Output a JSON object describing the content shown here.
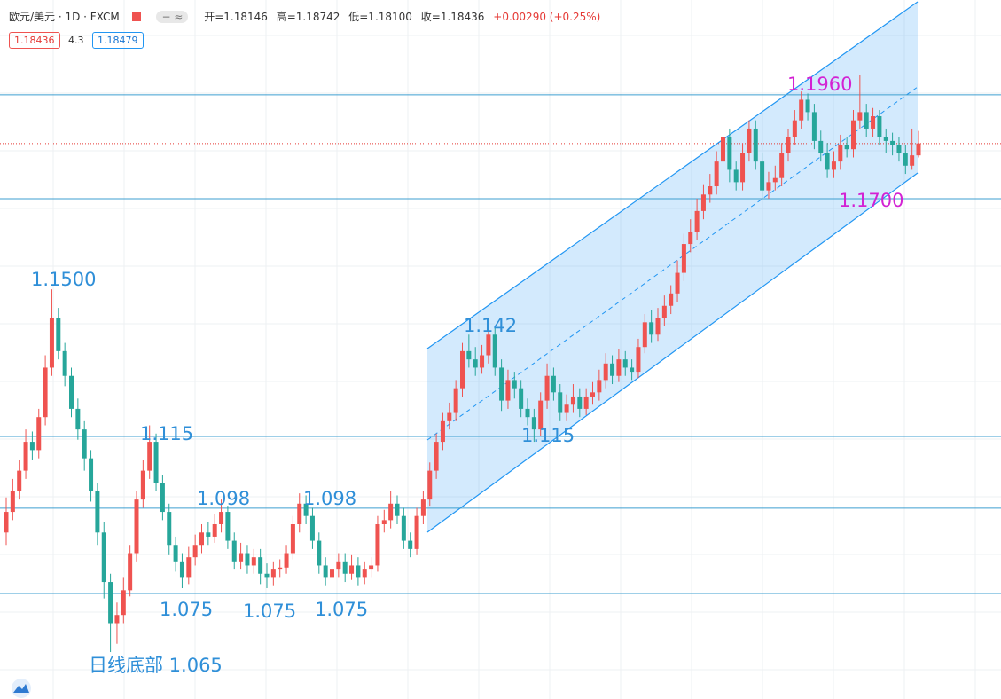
{
  "header": {
    "symbol": "欧元/美元 · 1D · FXCM",
    "ohlc": [
      "开=1.18146",
      "高=1.18742",
      "低=1.18100",
      "收=1.18436"
    ],
    "change": "+0.00290 (+0.25%)",
    "bid": "1.18436",
    "spread": "4.3",
    "ask": "1.18479"
  },
  "chart_data": {
    "type": "candlestick",
    "up_color": "#ef5350",
    "down_color": "#26a69a",
    "ylim": [
      1.0496,
      1.2192
    ],
    "open": [
      1.09,
      1.095,
      1.1,
      1.105,
      1.112,
      1.11,
      1.118,
      1.13,
      1.142,
      1.134,
      1.128,
      1.12,
      1.115,
      1.108,
      1.1,
      1.09,
      1.078,
      1.068,
      1.07,
      1.076,
      1.085,
      1.098,
      1.105,
      1.112,
      1.102,
      1.095,
      1.087,
      1.083,
      1.079,
      1.084,
      1.087,
      1.09,
      1.089,
      1.092,
      1.095,
      1.088,
      1.083,
      1.085,
      1.082,
      1.084,
      1.08,
      1.079,
      1.081,
      1.0815,
      1.085,
      1.092,
      1.097,
      1.094,
      1.088,
      1.082,
      1.079,
      1.081,
      1.083,
      1.08,
      1.082,
      1.079,
      1.081,
      1.082,
      1.092,
      1.093,
      1.097,
      1.094,
      1.088,
      1.086,
      1.094,
      1.098,
      1.105,
      1.112,
      1.117,
      1.119,
      1.125,
      1.134,
      1.132,
      1.13,
      1.133,
      1.138,
      1.13,
      1.122,
      1.127,
      1.125,
      1.12,
      1.118,
      1.115,
      1.122,
      1.128,
      1.124,
      1.119,
      1.121,
      1.123,
      1.12,
      1.123,
      1.124,
      1.127,
      1.131,
      1.128,
      1.132,
      1.13,
      1.129,
      1.135,
      1.141,
      1.138,
      1.142,
      1.145,
      1.148,
      1.153,
      1.16,
      1.163,
      1.168,
      1.172,
      1.174,
      1.18,
      1.186,
      1.178,
      1.175,
      1.182,
      1.188,
      1.18,
      1.173,
      1.175,
      1.176,
      1.182,
      1.186,
      1.19,
      1.195,
      1.192,
      1.185,
      1.182,
      1.178,
      1.18,
      1.184,
      1.183,
      1.19,
      1.192,
      1.188,
      1.191,
      1.186,
      1.185,
      1.184,
      1.182,
      1.179,
      1.1815
    ],
    "high": [
      1.0985,
      1.103,
      1.1075,
      1.115,
      1.1145,
      1.12,
      1.133,
      1.149,
      1.1445,
      1.136,
      1.13,
      1.1225,
      1.117,
      1.11,
      1.102,
      1.0925,
      1.08,
      1.073,
      1.079,
      1.087,
      1.1,
      1.1075,
      1.116,
      1.114,
      1.104,
      1.097,
      1.089,
      1.085,
      1.0865,
      1.0895,
      1.092,
      1.0925,
      1.0945,
      1.098,
      1.0965,
      1.09,
      1.0875,
      1.087,
      1.086,
      1.086,
      1.0825,
      1.083,
      1.0835,
      1.087,
      1.094,
      1.0995,
      1.099,
      1.096,
      1.09,
      1.084,
      1.083,
      1.085,
      1.085,
      1.0845,
      1.084,
      1.083,
      1.084,
      1.094,
      1.0955,
      1.1,
      1.099,
      1.096,
      1.09,
      1.096,
      1.1,
      1.107,
      1.114,
      1.119,
      1.1215,
      1.127,
      1.136,
      1.138,
      1.135,
      1.1355,
      1.141,
      1.14,
      1.132,
      1.1295,
      1.129,
      1.127,
      1.1225,
      1.12,
      1.124,
      1.131,
      1.13,
      1.126,
      1.1235,
      1.126,
      1.125,
      1.125,
      1.1265,
      1.1295,
      1.1335,
      1.133,
      1.1345,
      1.134,
      1.132,
      1.137,
      1.143,
      1.144,
      1.1445,
      1.1475,
      1.15,
      1.156,
      1.1625,
      1.166,
      1.171,
      1.1745,
      1.177,
      1.1825,
      1.189,
      1.188,
      1.18,
      1.1845,
      1.19,
      1.19,
      1.182,
      1.1775,
      1.179,
      1.1845,
      1.188,
      1.1925,
      1.197,
      1.1965,
      1.194,
      1.1875,
      1.1845,
      1.1825,
      1.1865,
      1.186,
      1.1925,
      1.201,
      1.194,
      1.193,
      1.1925,
      1.188,
      1.187,
      1.186,
      1.184,
      1.188,
      1.18742
    ],
    "low": [
      1.087,
      1.093,
      1.098,
      1.103,
      1.1075,
      1.108,
      1.116,
      1.128,
      1.132,
      1.1255,
      1.118,
      1.1125,
      1.105,
      1.0975,
      1.087,
      1.074,
      1.061,
      1.063,
      1.068,
      1.0745,
      1.083,
      1.096,
      1.103,
      1.1,
      1.093,
      1.0845,
      1.0805,
      1.0765,
      1.0775,
      1.082,
      1.085,
      1.087,
      1.0875,
      1.09,
      1.086,
      1.081,
      1.081,
      1.08,
      1.08,
      1.0775,
      1.0765,
      1.077,
      1.079,
      1.08,
      1.0835,
      1.09,
      1.092,
      1.086,
      1.08,
      1.077,
      1.077,
      1.079,
      1.078,
      1.0785,
      1.077,
      1.0775,
      1.079,
      1.0805,
      1.09,
      1.091,
      1.092,
      1.086,
      1.084,
      1.0845,
      1.092,
      1.0965,
      1.103,
      1.11,
      1.115,
      1.117,
      1.123,
      1.13,
      1.128,
      1.1285,
      1.131,
      1.128,
      1.1195,
      1.12,
      1.1225,
      1.118,
      1.116,
      1.112,
      1.1135,
      1.12,
      1.122,
      1.117,
      1.117,
      1.119,
      1.118,
      1.1185,
      1.121,
      1.122,
      1.125,
      1.126,
      1.1265,
      1.128,
      1.127,
      1.1275,
      1.1335,
      1.136,
      1.1365,
      1.14,
      1.143,
      1.146,
      1.151,
      1.158,
      1.161,
      1.166,
      1.17,
      1.172,
      1.178,
      1.175,
      1.173,
      1.173,
      1.18,
      1.178,
      1.171,
      1.171,
      1.173,
      1.174,
      1.18,
      1.184,
      1.188,
      1.19,
      1.183,
      1.18,
      1.176,
      1.176,
      1.178,
      1.181,
      1.181,
      1.188,
      1.186,
      1.186,
      1.184,
      1.182,
      1.1815,
      1.18,
      1.177,
      1.178,
      1.181
    ],
    "close": [
      1.095,
      1.1,
      1.105,
      1.112,
      1.11,
      1.118,
      1.13,
      1.142,
      1.134,
      1.128,
      1.12,
      1.115,
      1.108,
      1.1,
      1.09,
      1.078,
      1.068,
      1.07,
      1.076,
      1.085,
      1.098,
      1.105,
      1.112,
      1.102,
      1.095,
      1.087,
      1.083,
      1.079,
      1.084,
      1.087,
      1.09,
      1.089,
      1.092,
      1.095,
      1.088,
      1.083,
      1.085,
      1.082,
      1.084,
      1.08,
      1.079,
      1.081,
      1.0815,
      1.085,
      1.092,
      1.097,
      1.094,
      1.088,
      1.082,
      1.079,
      1.081,
      1.083,
      1.08,
      1.082,
      1.079,
      1.081,
      1.082,
      1.092,
      1.093,
      1.097,
      1.094,
      1.088,
      1.086,
      1.094,
      1.098,
      1.105,
      1.112,
      1.117,
      1.119,
      1.125,
      1.134,
      1.132,
      1.13,
      1.133,
      1.138,
      1.13,
      1.122,
      1.127,
      1.125,
      1.12,
      1.118,
      1.115,
      1.122,
      1.128,
      1.124,
      1.119,
      1.121,
      1.123,
      1.12,
      1.123,
      1.124,
      1.127,
      1.131,
      1.128,
      1.132,
      1.13,
      1.129,
      1.135,
      1.141,
      1.138,
      1.142,
      1.145,
      1.148,
      1.153,
      1.16,
      1.163,
      1.168,
      1.172,
      1.174,
      1.18,
      1.186,
      1.178,
      1.175,
      1.182,
      1.188,
      1.18,
      1.173,
      1.175,
      1.176,
      1.182,
      1.186,
      1.19,
      1.195,
      1.192,
      1.185,
      1.182,
      1.178,
      1.18,
      1.184,
      1.183,
      1.19,
      1.192,
      1.188,
      1.191,
      1.186,
      1.185,
      1.184,
      1.182,
      1.179,
      1.1815,
      1.1844
    ],
    "levels": [
      1.1962,
      1.171,
      1.1133,
      1.0959,
      1.0752
    ],
    "level_color": "#3d9fd0",
    "price_line": 1.18436,
    "price_line_color": "#e53935",
    "annotations": [
      {
        "text": "1.1500",
        "color": "#2f8fd8"
      },
      {
        "text": "1.115",
        "color": "#2f8fd8"
      },
      {
        "text": "1.098",
        "color": "#2f8fd8"
      },
      {
        "text": "1.098",
        "color": "#2f8fd8"
      },
      {
        "text": "1.075",
        "color": "#2f8fd8"
      },
      {
        "text": "1.075",
        "color": "#2f8fd8"
      },
      {
        "text": "1.075",
        "color": "#2f8fd8"
      },
      {
        "text": "日线底部 1.065",
        "color": "#2f8fd8"
      },
      {
        "text": "1.142",
        "color": "#2f8fd8"
      },
      {
        "text": "1.115",
        "color": "#2f8fd8"
      },
      {
        "text": "1.1960",
        "color": "#d322d3"
      },
      {
        "text": "1.1700",
        "color": "#d322d3"
      }
    ]
  }
}
